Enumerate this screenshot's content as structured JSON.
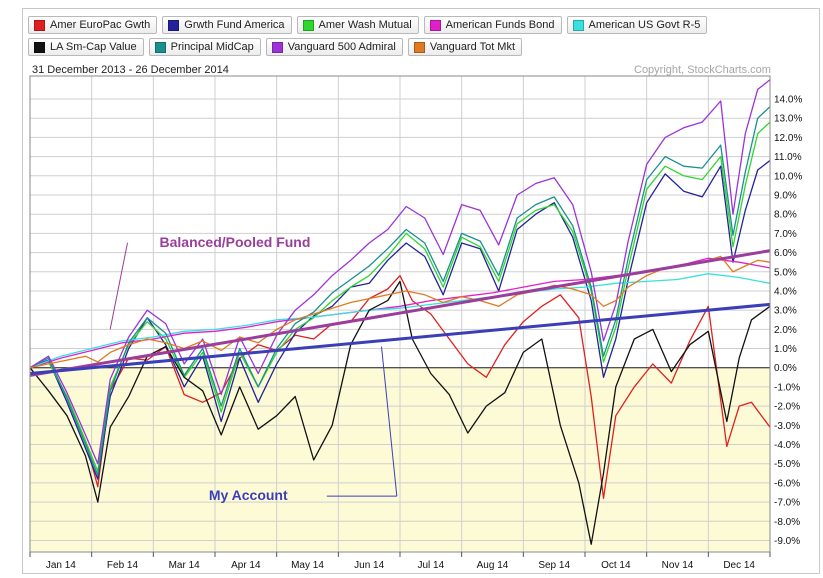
{
  "header": {
    "date_range": "31 December 2013 - 26 December 2014",
    "copyright": "Copyright, StockCharts.com"
  },
  "legend": [
    {
      "label": "Amer EuroPac Gwth",
      "color": "#e02020"
    },
    {
      "label": "Grwth Fund America",
      "color": "#22229a"
    },
    {
      "label": "Amer Wash Mutual",
      "color": "#2ed62e"
    },
    {
      "label": "American Funds Bond",
      "color": "#e020c8"
    },
    {
      "label": "American US Govt R-5",
      "color": "#38e0e0"
    },
    {
      "label": "LA Sm-Cap Value",
      "color": "#111111"
    },
    {
      "label": "Principal MidCap",
      "color": "#1a8f8f"
    },
    {
      "label": "Vanguard 500 Admiral",
      "color": "#9a34d8"
    },
    {
      "label": "Vanguard Tot Mkt",
      "color": "#e07a20"
    }
  ],
  "chart_data": {
    "type": "line",
    "x_label_positions": [
      0.5,
      1.5,
      2.5,
      3.5,
      4.5,
      5.5,
      6.5,
      7.5,
      8.5,
      9.5,
      10.5,
      11.5
    ],
    "x_labels": [
      "Jan 14",
      "Feb 14",
      "Mar 14",
      "Apr 14",
      "May 14",
      "Jun 14",
      "Jul 14",
      "Aug 14",
      "Sep 14",
      "Oct 14",
      "Nov 14",
      "Dec 14"
    ],
    "xlim": [
      0,
      12
    ],
    "ylim": [
      -9.6,
      15.2
    ],
    "y_ticks": [
      -9,
      -8,
      -7,
      -6,
      -5,
      -4,
      -3,
      -2,
      -1,
      0,
      1,
      2,
      3,
      4,
      5,
      6,
      7,
      8,
      9,
      10,
      11,
      12,
      13,
      14
    ],
    "y_tick_labels": [
      "-9.0%",
      "-8.0%",
      "-7.0%",
      "-6.0%",
      "-5.0%",
      "-4.0%",
      "-3.0%",
      "-2.0%",
      "-1.0%",
      "0.0%",
      "1.0%",
      "2.0%",
      "3.0%",
      "4.0%",
      "5.0%",
      "6.0%",
      "7.0%",
      "8.0%",
      "9.0%",
      "10.0%",
      "11.0%",
      "12.0%",
      "13.0%",
      "14.0%"
    ],
    "grid": true,
    "series": [
      {
        "name": "Amer EuroPac Gwth",
        "color": "#e02020",
        "x": [
          0,
          0.3,
          0.6,
          0.9,
          1.1,
          1.3,
          1.6,
          1.9,
          2.2,
          2.5,
          2.8,
          3.1,
          3.4,
          3.7,
          4.0,
          4.3,
          4.6,
          4.9,
          5.2,
          5.5,
          5.8,
          6.0,
          6.2,
          6.5,
          6.8,
          7.1,
          7.4,
          7.7,
          8.0,
          8.3,
          8.6,
          8.9,
          9.1,
          9.3,
          9.5,
          9.8,
          10.1,
          10.4,
          10.7,
          11.0,
          11.3,
          11.5,
          11.7,
          12.0
        ],
        "y": [
          0,
          0.3,
          -1.5,
          -3.8,
          -6.2,
          -1.2,
          0.5,
          0.4,
          1.1,
          -1.4,
          -1.8,
          -1.3,
          0.5,
          1.2,
          0.9,
          1.7,
          1.5,
          2.3,
          2.4,
          3.6,
          4.1,
          4.8,
          3.5,
          2.8,
          1.5,
          0.2,
          -0.5,
          1.2,
          2.4,
          3.2,
          3.8,
          2.6,
          -1.5,
          -6.8,
          -2.5,
          -1.0,
          0.2,
          -0.8,
          1.4,
          3.2,
          -4.1,
          -2.0,
          -1.8,
          -3.1
        ]
      },
      {
        "name": "Grwth Fund America",
        "color": "#22229a",
        "x": [
          0,
          0.3,
          0.6,
          0.9,
          1.1,
          1.3,
          1.6,
          1.9,
          2.2,
          2.5,
          2.8,
          3.1,
          3.4,
          3.7,
          4.0,
          4.3,
          4.6,
          4.9,
          5.2,
          5.5,
          5.8,
          6.1,
          6.4,
          6.7,
          7.0,
          7.3,
          7.6,
          7.9,
          8.2,
          8.5,
          8.8,
          9.1,
          9.3,
          9.5,
          9.7,
          10.0,
          10.3,
          10.6,
          10.9,
          11.2,
          11.4,
          11.6,
          11.8,
          12.0
        ],
        "y": [
          0,
          0.4,
          -1.8,
          -4.2,
          -5.8,
          -1.5,
          1.0,
          2.6,
          1.2,
          -1.0,
          0.6,
          -2.8,
          0.5,
          -1.8,
          0.2,
          1.8,
          2.7,
          3.2,
          4.2,
          4.4,
          5.6,
          6.5,
          5.8,
          3.8,
          6.5,
          6.2,
          4.0,
          7.2,
          8.0,
          8.6,
          6.8,
          3.5,
          -0.5,
          1.5,
          4.6,
          8.6,
          10.1,
          9.2,
          8.9,
          10.5,
          5.5,
          8.2,
          10.3,
          10.8
        ]
      },
      {
        "name": "Amer Wash Mutual",
        "color": "#2ed62e",
        "x": [
          0,
          0.3,
          0.6,
          0.9,
          1.1,
          1.3,
          1.6,
          1.9,
          2.2,
          2.5,
          2.8,
          3.1,
          3.4,
          3.7,
          4.0,
          4.3,
          4.6,
          4.9,
          5.2,
          5.5,
          5.8,
          6.1,
          6.4,
          6.7,
          7.0,
          7.3,
          7.6,
          7.9,
          8.2,
          8.5,
          8.8,
          9.1,
          9.3,
          9.5,
          9.7,
          10.0,
          10.3,
          10.6,
          10.9,
          11.2,
          11.4,
          11.6,
          11.8,
          12.0
        ],
        "y": [
          0,
          0.3,
          -1.5,
          -3.8,
          -5.4,
          -1.0,
          1.2,
          2.4,
          1.5,
          -0.5,
          0.8,
          -2.3,
          0.8,
          -1.0,
          0.8,
          2.0,
          2.6,
          3.5,
          4.2,
          4.8,
          5.8,
          7.0,
          6.2,
          4.2,
          6.8,
          6.3,
          4.5,
          7.5,
          8.2,
          8.5,
          7.1,
          4.0,
          0.3,
          2.1,
          5.2,
          9.3,
          10.5,
          10.0,
          9.8,
          11.0,
          6.3,
          9.5,
          12.2,
          12.8
        ]
      },
      {
        "name": "American Funds Bond",
        "color": "#e020c8",
        "x": [
          0,
          0.5,
          1.0,
          1.5,
          2.0,
          2.5,
          3.0,
          3.5,
          4.0,
          4.5,
          5.0,
          5.5,
          6.0,
          6.5,
          7.0,
          7.5,
          8.0,
          8.5,
          9.0,
          9.5,
          10.0,
          10.5,
          11.0,
          11.5,
          12.0
        ],
        "y": [
          0,
          0.5,
          0.9,
          1.3,
          1.5,
          1.8,
          1.9,
          2.1,
          2.4,
          2.6,
          2.8,
          3.0,
          3.2,
          3.5,
          3.7,
          3.9,
          4.2,
          4.5,
          4.6,
          4.8,
          5.0,
          5.3,
          5.7,
          5.5,
          5.2
        ]
      },
      {
        "name": "American US Govt R-5",
        "color": "#38e0e0",
        "x": [
          0,
          0.5,
          1.0,
          1.5,
          2.0,
          2.5,
          3.0,
          3.5,
          4.0,
          4.5,
          5.0,
          5.5,
          6.0,
          6.5,
          7.0,
          7.5,
          8.0,
          8.5,
          9.0,
          9.5,
          10.0,
          10.5,
          11.0,
          11.5,
          12.0
        ],
        "y": [
          0,
          0.6,
          1.0,
          1.4,
          1.6,
          1.9,
          2.0,
          2.2,
          2.5,
          2.6,
          2.8,
          3.0,
          3.1,
          3.3,
          3.5,
          3.7,
          3.9,
          4.1,
          4.2,
          4.4,
          4.5,
          4.6,
          4.9,
          4.7,
          4.4
        ]
      },
      {
        "name": "LA Sm-Cap Value",
        "color": "#111111",
        "x": [
          0,
          0.3,
          0.6,
          0.9,
          1.1,
          1.3,
          1.6,
          1.9,
          2.2,
          2.5,
          2.8,
          3.1,
          3.4,
          3.7,
          4.0,
          4.3,
          4.6,
          4.9,
          5.2,
          5.5,
          5.8,
          6.0,
          6.2,
          6.5,
          6.8,
          7.1,
          7.4,
          7.7,
          8.0,
          8.3,
          8.6,
          8.9,
          9.1,
          9.3,
          9.5,
          9.8,
          10.1,
          10.4,
          10.7,
          11.0,
          11.3,
          11.5,
          11.7,
          12.0
        ],
        "y": [
          0,
          -1.2,
          -2.5,
          -4.6,
          -7.0,
          -3.1,
          -1.5,
          0.6,
          1.1,
          -0.5,
          -1.2,
          -3.5,
          -1.0,
          -3.2,
          -2.5,
          -1.5,
          -4.8,
          -3.0,
          1.2,
          3.0,
          3.5,
          4.5,
          1.5,
          -0.3,
          -1.4,
          -3.4,
          -2.0,
          -1.3,
          0.8,
          1.5,
          -3.0,
          -6.0,
          -9.2,
          -5.5,
          -1.0,
          1.5,
          2.0,
          -0.2,
          1.2,
          1.9,
          -2.8,
          0.5,
          2.5,
          3.2
        ]
      },
      {
        "name": "Principal MidCap",
        "color": "#1a8f8f",
        "x": [
          0,
          0.3,
          0.6,
          0.9,
          1.1,
          1.3,
          1.6,
          1.9,
          2.2,
          2.5,
          2.8,
          3.1,
          3.4,
          3.7,
          4.0,
          4.3,
          4.6,
          4.9,
          5.2,
          5.5,
          5.8,
          6.1,
          6.4,
          6.7,
          7.0,
          7.3,
          7.6,
          7.9,
          8.2,
          8.5,
          8.8,
          9.1,
          9.3,
          9.5,
          9.7,
          10.0,
          10.3,
          10.6,
          10.9,
          11.2,
          11.4,
          11.6,
          11.8,
          12.0
        ],
        "y": [
          0,
          0.5,
          -1.6,
          -4.0,
          -5.6,
          -1.2,
          1.3,
          2.6,
          1.8,
          -0.4,
          1.0,
          -2.0,
          1.0,
          -1.0,
          1.0,
          2.3,
          2.9,
          3.9,
          4.6,
          5.3,
          6.2,
          7.2,
          6.5,
          4.5,
          7.0,
          6.6,
          4.8,
          7.8,
          8.5,
          8.9,
          7.4,
          4.2,
          0.6,
          2.5,
          5.7,
          9.8,
          11.0,
          10.5,
          10.4,
          11.6,
          6.9,
          10.2,
          13.0,
          13.6
        ]
      },
      {
        "name": "Vanguard 500 Admiral",
        "color": "#9a34d8",
        "x": [
          0,
          0.3,
          0.6,
          0.9,
          1.1,
          1.3,
          1.6,
          1.9,
          2.2,
          2.5,
          2.8,
          3.1,
          3.4,
          3.7,
          4.0,
          4.3,
          4.6,
          4.9,
          5.2,
          5.5,
          5.8,
          6.1,
          6.4,
          6.7,
          7.0,
          7.3,
          7.6,
          7.9,
          8.2,
          8.5,
          8.8,
          9.1,
          9.3,
          9.5,
          9.7,
          10.0,
          10.3,
          10.6,
          10.9,
          11.2,
          11.4,
          11.6,
          11.8,
          12.0
        ],
        "y": [
          0,
          0.6,
          -1.3,
          -3.5,
          -5.0,
          -0.6,
          1.6,
          3.0,
          2.3,
          0.2,
          1.5,
          -1.4,
          1.6,
          -0.3,
          1.7,
          3.0,
          3.8,
          4.8,
          5.6,
          6.5,
          7.2,
          8.4,
          7.8,
          5.9,
          8.5,
          8.2,
          6.4,
          9.0,
          9.6,
          9.9,
          8.5,
          5.0,
          1.4,
          3.3,
          6.6,
          10.6,
          12.0,
          12.5,
          12.8,
          13.9,
          8.0,
          12.2,
          14.5,
          15.0
        ]
      },
      {
        "name": "Vanguard Tot Mkt",
        "color": "#e07a20",
        "x": [
          0,
          0.3,
          0.6,
          0.9,
          1.1,
          1.3,
          1.6,
          1.9,
          2.2,
          2.5,
          2.8,
          3.1,
          3.4,
          3.7,
          4.0,
          4.3,
          4.6,
          4.9,
          5.2,
          5.5,
          5.8,
          6.1,
          6.4,
          6.7,
          7.0,
          7.3,
          7.6,
          7.9,
          8.2,
          8.5,
          8.8,
          9.1,
          9.3,
          9.5,
          9.7,
          10.0,
          10.3,
          10.6,
          10.9,
          11.2,
          11.4,
          11.6,
          11.8,
          12.0
        ],
        "y": [
          0,
          0.2,
          0.4,
          0.6,
          0.3,
          0.8,
          1.2,
          1.5,
          1.3,
          1.0,
          1.4,
          0.9,
          1.6,
          1.3,
          2.0,
          2.5,
          2.8,
          3.1,
          3.4,
          3.6,
          3.8,
          4.0,
          3.8,
          3.4,
          3.7,
          3.5,
          3.2,
          3.8,
          4.0,
          4.3,
          4.1,
          3.8,
          3.2,
          3.5,
          4.2,
          4.8,
          5.2,
          5.4,
          5.5,
          5.8,
          5.0,
          5.3,
          5.6,
          5.5
        ]
      }
    ],
    "trendlines": [
      {
        "name": "Balanced/Pooled Fund",
        "color": "#9b3d9b",
        "x": [
          0,
          12
        ],
        "y": [
          -0.4,
          6.1
        ]
      },
      {
        "name": "My Account",
        "color": "#3a3fb8",
        "x": [
          0,
          12
        ],
        "y": [
          -0.3,
          3.3
        ]
      }
    ],
    "annotations": [
      {
        "text": "Balanced/Pooled Fund",
        "color": "#9b3d9b",
        "x": 2.1,
        "y": 6.3,
        "pointer_to": [
          1.3,
          2.0
        ]
      },
      {
        "text": "My Account",
        "color": "#3a3fb8",
        "x": 2.9,
        "y": -6.9,
        "pointer_to": [
          5.7,
          1.1
        ]
      }
    ]
  }
}
